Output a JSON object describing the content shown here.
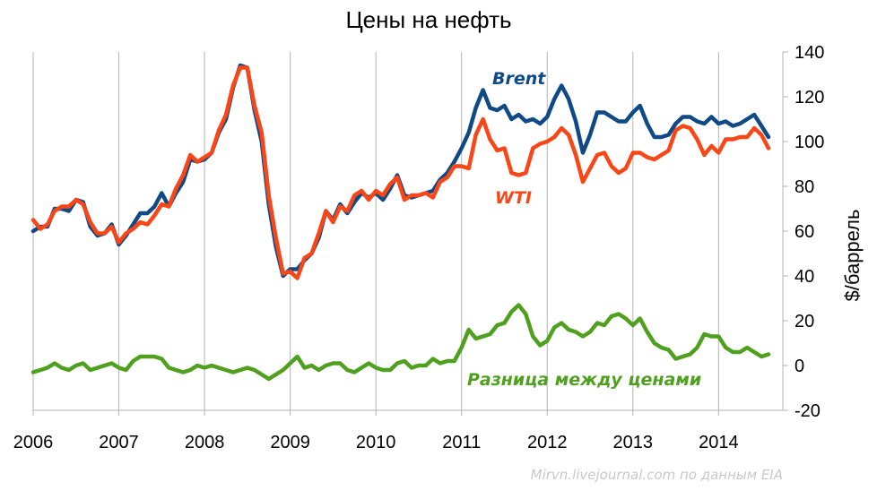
{
  "chart_data": {
    "type": "line",
    "title": "Цены на нефть",
    "ylabel": "$/баррель",
    "ylim": [
      -20,
      140
    ],
    "yticks": [
      -20,
      0,
      20,
      40,
      60,
      80,
      100,
      120,
      140
    ],
    "xlim": [
      2006,
      2014.75
    ],
    "xticks": [
      2006,
      2007,
      2008,
      2009,
      2010,
      2011,
      2012,
      2013,
      2014
    ],
    "xtick_labels": [
      "2006",
      "2007",
      "2008",
      "2009",
      "2010",
      "2011",
      "2012",
      "2013",
      "2014"
    ],
    "grid": "vertical at year boundaries",
    "source_note": "Mirvn.livejournal.com по данным EIA",
    "series": [
      {
        "name": "Brent",
        "color": "#0f4a87",
        "x_start": 2006,
        "x_step": 0.08333,
        "values": [
          60,
          62,
          62,
          70,
          70,
          69,
          74,
          73,
          62,
          58,
          59,
          63,
          54,
          58,
          63,
          68,
          68,
          71,
          77,
          71,
          77,
          82,
          92,
          91,
          92,
          95,
          104,
          110,
          124,
          134,
          133,
          114,
          100,
          72,
          53,
          40,
          43,
          43,
          47,
          50,
          57,
          69,
          65,
          72,
          68,
          73,
          77,
          75,
          77,
          74,
          79,
          85,
          76,
          75,
          76,
          77,
          78,
          83,
          86,
          91,
          97,
          104,
          115,
          123,
          115,
          114,
          116,
          110,
          112,
          109,
          110,
          108,
          111,
          119,
          125,
          119,
          109,
          95,
          103,
          113,
          113,
          111,
          109,
          109,
          113,
          116,
          108,
          102,
          102,
          103,
          108,
          111,
          111,
          109,
          108,
          111,
          108,
          109,
          107,
          108,
          110,
          112,
          107,
          102
        ]
      },
      {
        "name": "WTI",
        "color": "#fa4616",
        "x_start": 2006,
        "x_step": 0.08333,
        "values": [
          65,
          61,
          63,
          69,
          71,
          71,
          74,
          72,
          64,
          59,
          59,
          62,
          55,
          59,
          61,
          64,
          63,
          67,
          72,
          71,
          79,
          85,
          94,
          91,
          93,
          95,
          105,
          112,
          125,
          133,
          133,
          116,
          104,
          76,
          57,
          41,
          42,
          39,
          48,
          50,
          59,
          69,
          64,
          71,
          69,
          76,
          78,
          74,
          78,
          76,
          81,
          84,
          74,
          76,
          76,
          77,
          75,
          82,
          84,
          89,
          89,
          88,
          103,
          110,
          101,
          96,
          97,
          86,
          85,
          86,
          97,
          99,
          100,
          102,
          106,
          103,
          94,
          82,
          88,
          94,
          95,
          89,
          86,
          88,
          95,
          95,
          93,
          92,
          94,
          96,
          105,
          107,
          106,
          101,
          94,
          98,
          95,
          101,
          101,
          102,
          102,
          106,
          103,
          97
        ]
      },
      {
        "name": "Разница между ценами",
        "color": "#4fa01e",
        "x_start": 2006,
        "x_step": 0.08333,
        "values": [
          -3,
          -2,
          -1,
          1,
          -1,
          -2,
          0,
          1,
          -2,
          -1,
          0,
          1,
          -1,
          -2,
          2,
          4,
          4,
          4,
          3,
          -1,
          -2,
          -3,
          -2,
          0,
          -1,
          0,
          -1,
          -2,
          -3,
          -2,
          -1,
          -2,
          -4,
          -6,
          -4,
          -2,
          1,
          4,
          -1,
          0,
          -2,
          0,
          1,
          1,
          -2,
          -3,
          -1,
          1,
          -1,
          -2,
          -2,
          1,
          2,
          -1,
          0,
          0,
          3,
          1,
          2,
          2,
          8,
          16,
          12,
          13,
          14,
          18,
          19,
          24,
          27,
          23,
          13,
          9,
          11,
          17,
          19,
          16,
          15,
          13,
          15,
          19,
          18,
          22,
          23,
          21,
          18,
          21,
          15,
          10,
          8,
          7,
          3,
          4,
          5,
          8,
          14,
          13,
          13,
          8,
          6,
          6,
          8,
          6,
          4,
          5
        ]
      }
    ]
  }
}
